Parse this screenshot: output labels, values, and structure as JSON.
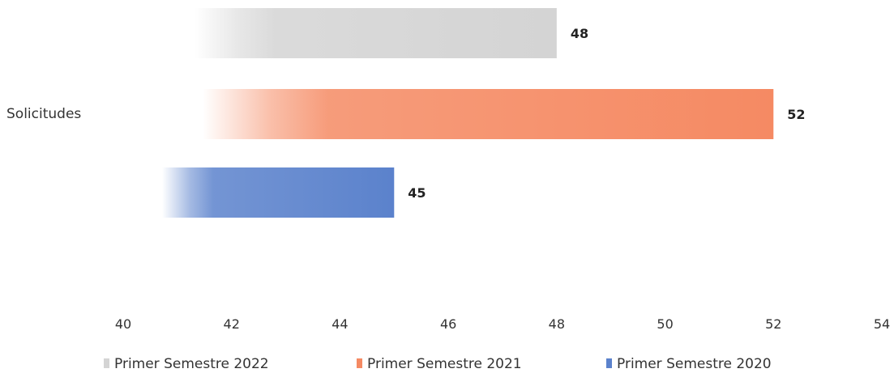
{
  "chart_data": {
    "type": "bar",
    "orientation": "horizontal",
    "categories": [
      "Solicitudes"
    ],
    "series": [
      {
        "name": "Primer Semestre 2022",
        "values": [
          48
        ],
        "color": "#d4d4d4"
      },
      {
        "name": "Primer Semestre 2021",
        "values": [
          52
        ],
        "color": "#f58a63"
      },
      {
        "name": "Primer Semestre 2020",
        "values": [
          45
        ],
        "color": "#5b82cc"
      }
    ],
    "xlim": [
      40,
      54
    ],
    "xticks": [
      40,
      42,
      44,
      46,
      48,
      50,
      52,
      54
    ],
    "title": "",
    "xlabel": "",
    "ylabel": "",
    "grid": false,
    "legend_position": "bottom"
  }
}
